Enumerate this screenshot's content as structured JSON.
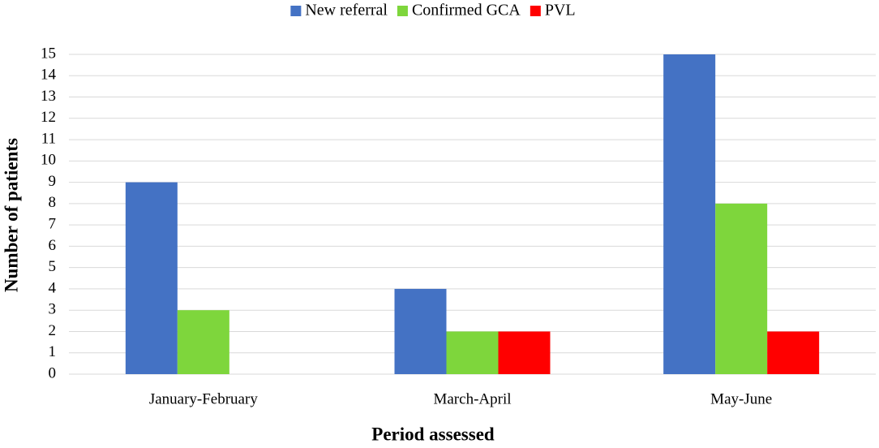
{
  "chart_data": {
    "type": "bar",
    "categories": [
      "January-February",
      "March-April",
      "May-June"
    ],
    "series": [
      {
        "name": "New referral",
        "color": "#4472c4",
        "values": [
          9,
          4,
          15
        ]
      },
      {
        "name": "Confirmed GCA",
        "color": "#7ed63c",
        "values": [
          3,
          2,
          8
        ]
      },
      {
        "name": "PVL",
        "color": "#ff0000",
        "values": [
          0,
          2,
          2
        ]
      }
    ],
    "x_label": "Period assessed",
    "y_label": "Number of patients",
    "ylim": [
      0,
      15
    ],
    "yticks": [
      0,
      1,
      2,
      3,
      4,
      5,
      6,
      7,
      8,
      9,
      10,
      11,
      12,
      13,
      14,
      15
    ],
    "grid": true,
    "legend": "top"
  }
}
